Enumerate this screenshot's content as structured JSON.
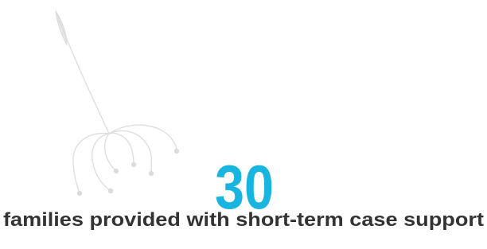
{
  "stat": {
    "number": "30",
    "label": "families provided with short-term case support"
  }
}
